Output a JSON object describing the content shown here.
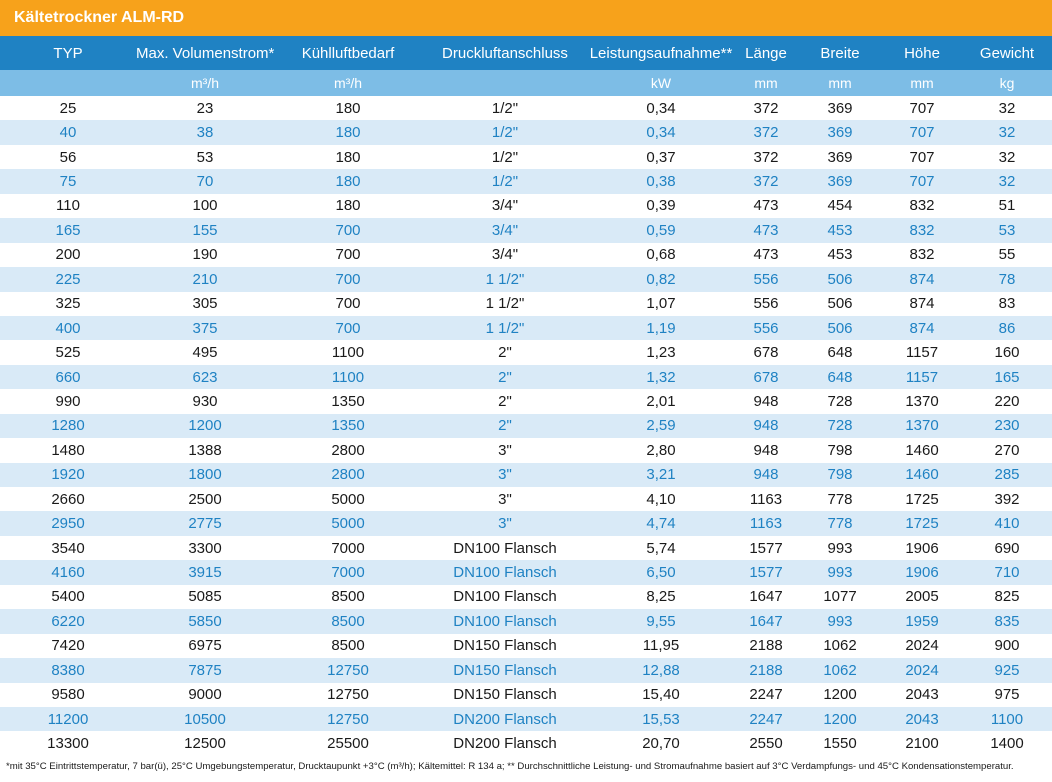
{
  "title": "Kältetrockner ALM-RD",
  "columns": [
    "TYP",
    "Max. Volumenstrom*",
    "Kühlluftbedarf",
    "Druckluftanschluss",
    "Leistungsaufnahme**",
    "Länge",
    "Breite",
    "Höhe",
    "Gewicht"
  ],
  "units": [
    "",
    "m³/h",
    "m³/h",
    "",
    "kW",
    "mm",
    "mm",
    "mm",
    "kg"
  ],
  "rows": [
    [
      "25",
      "23",
      "180",
      "1/2\"",
      "0,34",
      "372",
      "369",
      "707",
      "32"
    ],
    [
      "40",
      "38",
      "180",
      "1/2\"",
      "0,34",
      "372",
      "369",
      "707",
      "32"
    ],
    [
      "56",
      "53",
      "180",
      "1/2\"",
      "0,37",
      "372",
      "369",
      "707",
      "32"
    ],
    [
      "75",
      "70",
      "180",
      "1/2\"",
      "0,38",
      "372",
      "369",
      "707",
      "32"
    ],
    [
      "110",
      "100",
      "180",
      "3/4\"",
      "0,39",
      "473",
      "454",
      "832",
      "51"
    ],
    [
      "165",
      "155",
      "700",
      "3/4\"",
      "0,59",
      "473",
      "453",
      "832",
      "53"
    ],
    [
      "200",
      "190",
      "700",
      "3/4\"",
      "0,68",
      "473",
      "453",
      "832",
      "55"
    ],
    [
      "225",
      "210",
      "700",
      "1 1/2\"",
      "0,82",
      "556",
      "506",
      "874",
      "78"
    ],
    [
      "325",
      "305",
      "700",
      "1 1/2\"",
      "1,07",
      "556",
      "506",
      "874",
      "83"
    ],
    [
      "400",
      "375",
      "700",
      "1 1/2\"",
      "1,19",
      "556",
      "506",
      "874",
      "86"
    ],
    [
      "525",
      "495",
      "1100",
      "2\"",
      "1,23",
      "678",
      "648",
      "1157",
      "160"
    ],
    [
      "660",
      "623",
      "1100",
      "2\"",
      "1,32",
      "678",
      "648",
      "1157",
      "165"
    ],
    [
      "990",
      "930",
      "1350",
      "2\"",
      "2,01",
      "948",
      "728",
      "1370",
      "220"
    ],
    [
      "1280",
      "1200",
      "1350",
      "2\"",
      "2,59",
      "948",
      "728",
      "1370",
      "230"
    ],
    [
      "1480",
      "1388",
      "2800",
      "3\"",
      "2,80",
      "948",
      "798",
      "1460",
      "270"
    ],
    [
      "1920",
      "1800",
      "2800",
      "3\"",
      "3,21",
      "948",
      "798",
      "1460",
      "285"
    ],
    [
      "2660",
      "2500",
      "5000",
      "3\"",
      "4,10",
      "1163",
      "778",
      "1725",
      "392"
    ],
    [
      "2950",
      "2775",
      "5000",
      "3\"",
      "4,74",
      "1163",
      "778",
      "1725",
      "410"
    ],
    [
      "3540",
      "3300",
      "7000",
      "DN100 Flansch",
      "5,74",
      "1577",
      "993",
      "1906",
      "690"
    ],
    [
      "4160",
      "3915",
      "7000",
      "DN100 Flansch",
      "6,50",
      "1577",
      "993",
      "1906",
      "710"
    ],
    [
      "5400",
      "5085",
      "8500",
      "DN100 Flansch",
      "8,25",
      "1647",
      "1077",
      "2005",
      "825"
    ],
    [
      "6220",
      "5850",
      "8500",
      "DN100 Flansch",
      "9,55",
      "1647",
      "993",
      "1959",
      "835"
    ],
    [
      "7420",
      "6975",
      "8500",
      "DN150 Flansch",
      "11,95",
      "2188",
      "1062",
      "2024",
      "900"
    ],
    [
      "8380",
      "7875",
      "12750",
      "DN150 Flansch",
      "12,88",
      "2188",
      "1062",
      "2024",
      "925"
    ],
    [
      "9580",
      "9000",
      "12750",
      "DN150 Flansch",
      "15,40",
      "2247",
      "1200",
      "2043",
      "975"
    ],
    [
      "11200",
      "10500",
      "12750",
      "DN200 Flansch",
      "15,53",
      "2247",
      "1200",
      "2043",
      "1100"
    ],
    [
      "13300",
      "12500",
      "25500",
      "DN200 Flansch",
      "20,70",
      "2550",
      "1550",
      "2100",
      "1400"
    ]
  ],
  "footnote": "*mit 35°C Eintrittstemperatur, 7 bar(ü), 25°C Umgebungstemperatur, Drucktaupunkt +3°C (m³/h); Kältemittel: R 134 a; ** Durchschnittliche Leistung- und Stromaufnahme basiert auf 3°C Verdampfungs- und 45°C Kondensationstemperatur.",
  "colors": {
    "title_bg": "#f7a21b",
    "header_bg": "#1f82c3",
    "unit_bg": "#7dbde6",
    "stripe_bg": "#d9eaf7",
    "stripe_text": "#1f82c3"
  }
}
